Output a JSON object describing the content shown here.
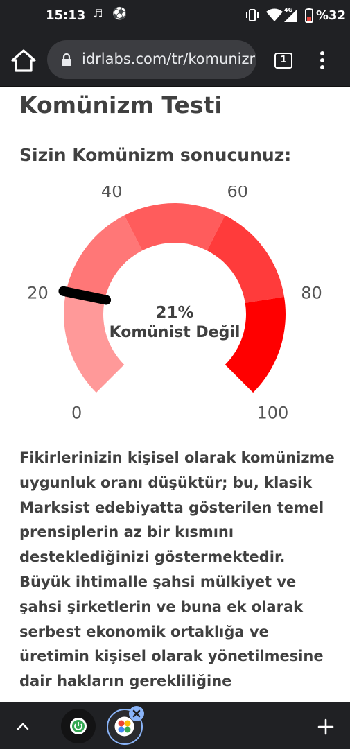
{
  "status_bar": {
    "time": "15:13",
    "battery_text": "%32",
    "network_label": "4G",
    "icons": [
      "music-note-icon",
      "soccer-ball-icon",
      "vibrate-icon",
      "wifi-icon",
      "signal-icon",
      "battery-icon"
    ]
  },
  "browser": {
    "url": "idrlabs.com/tr/komunizm",
    "tab_count": "1",
    "icons": [
      "home-icon",
      "lock-icon",
      "tabs-icon",
      "menu-icon"
    ]
  },
  "page": {
    "title": "Komünizm Testi",
    "result_heading": "Sizin Komünizm sonucunuz:",
    "description": "Fikirlerinizin kişisel olarak komünizme uygunluk oranı düşüktür; bu, klasik Marksist edebiyatta gösterilen temel prensiplerin az bir kısmını desteklediğinizi göstermektedir. Büyük ihtimalle şahsi mülkiyet ve şahsi şirketlerin ve buna ek olarak serbest ekonomik ortaklığa ve üretimin kişisel olarak yönetilmesine dair hakların gerekliliğine"
  },
  "gauge": {
    "value": 21,
    "value_label": "21%",
    "result_label": "Komünist Değil",
    "min": 0,
    "max": 100,
    "tick_labels": [
      "0",
      "20",
      "40",
      "60",
      "80",
      "100"
    ],
    "segment_colors": [
      "#ff9999",
      "#ff7777",
      "#ff5c5c",
      "#ff3b3b",
      "#ff0000"
    ],
    "needle_color": "#000000"
  },
  "bottom_bar": {
    "icons": [
      "chevron-up-icon",
      "power-app-icon",
      "circles-app-icon",
      "close-icon",
      "plus-icon"
    ]
  }
}
